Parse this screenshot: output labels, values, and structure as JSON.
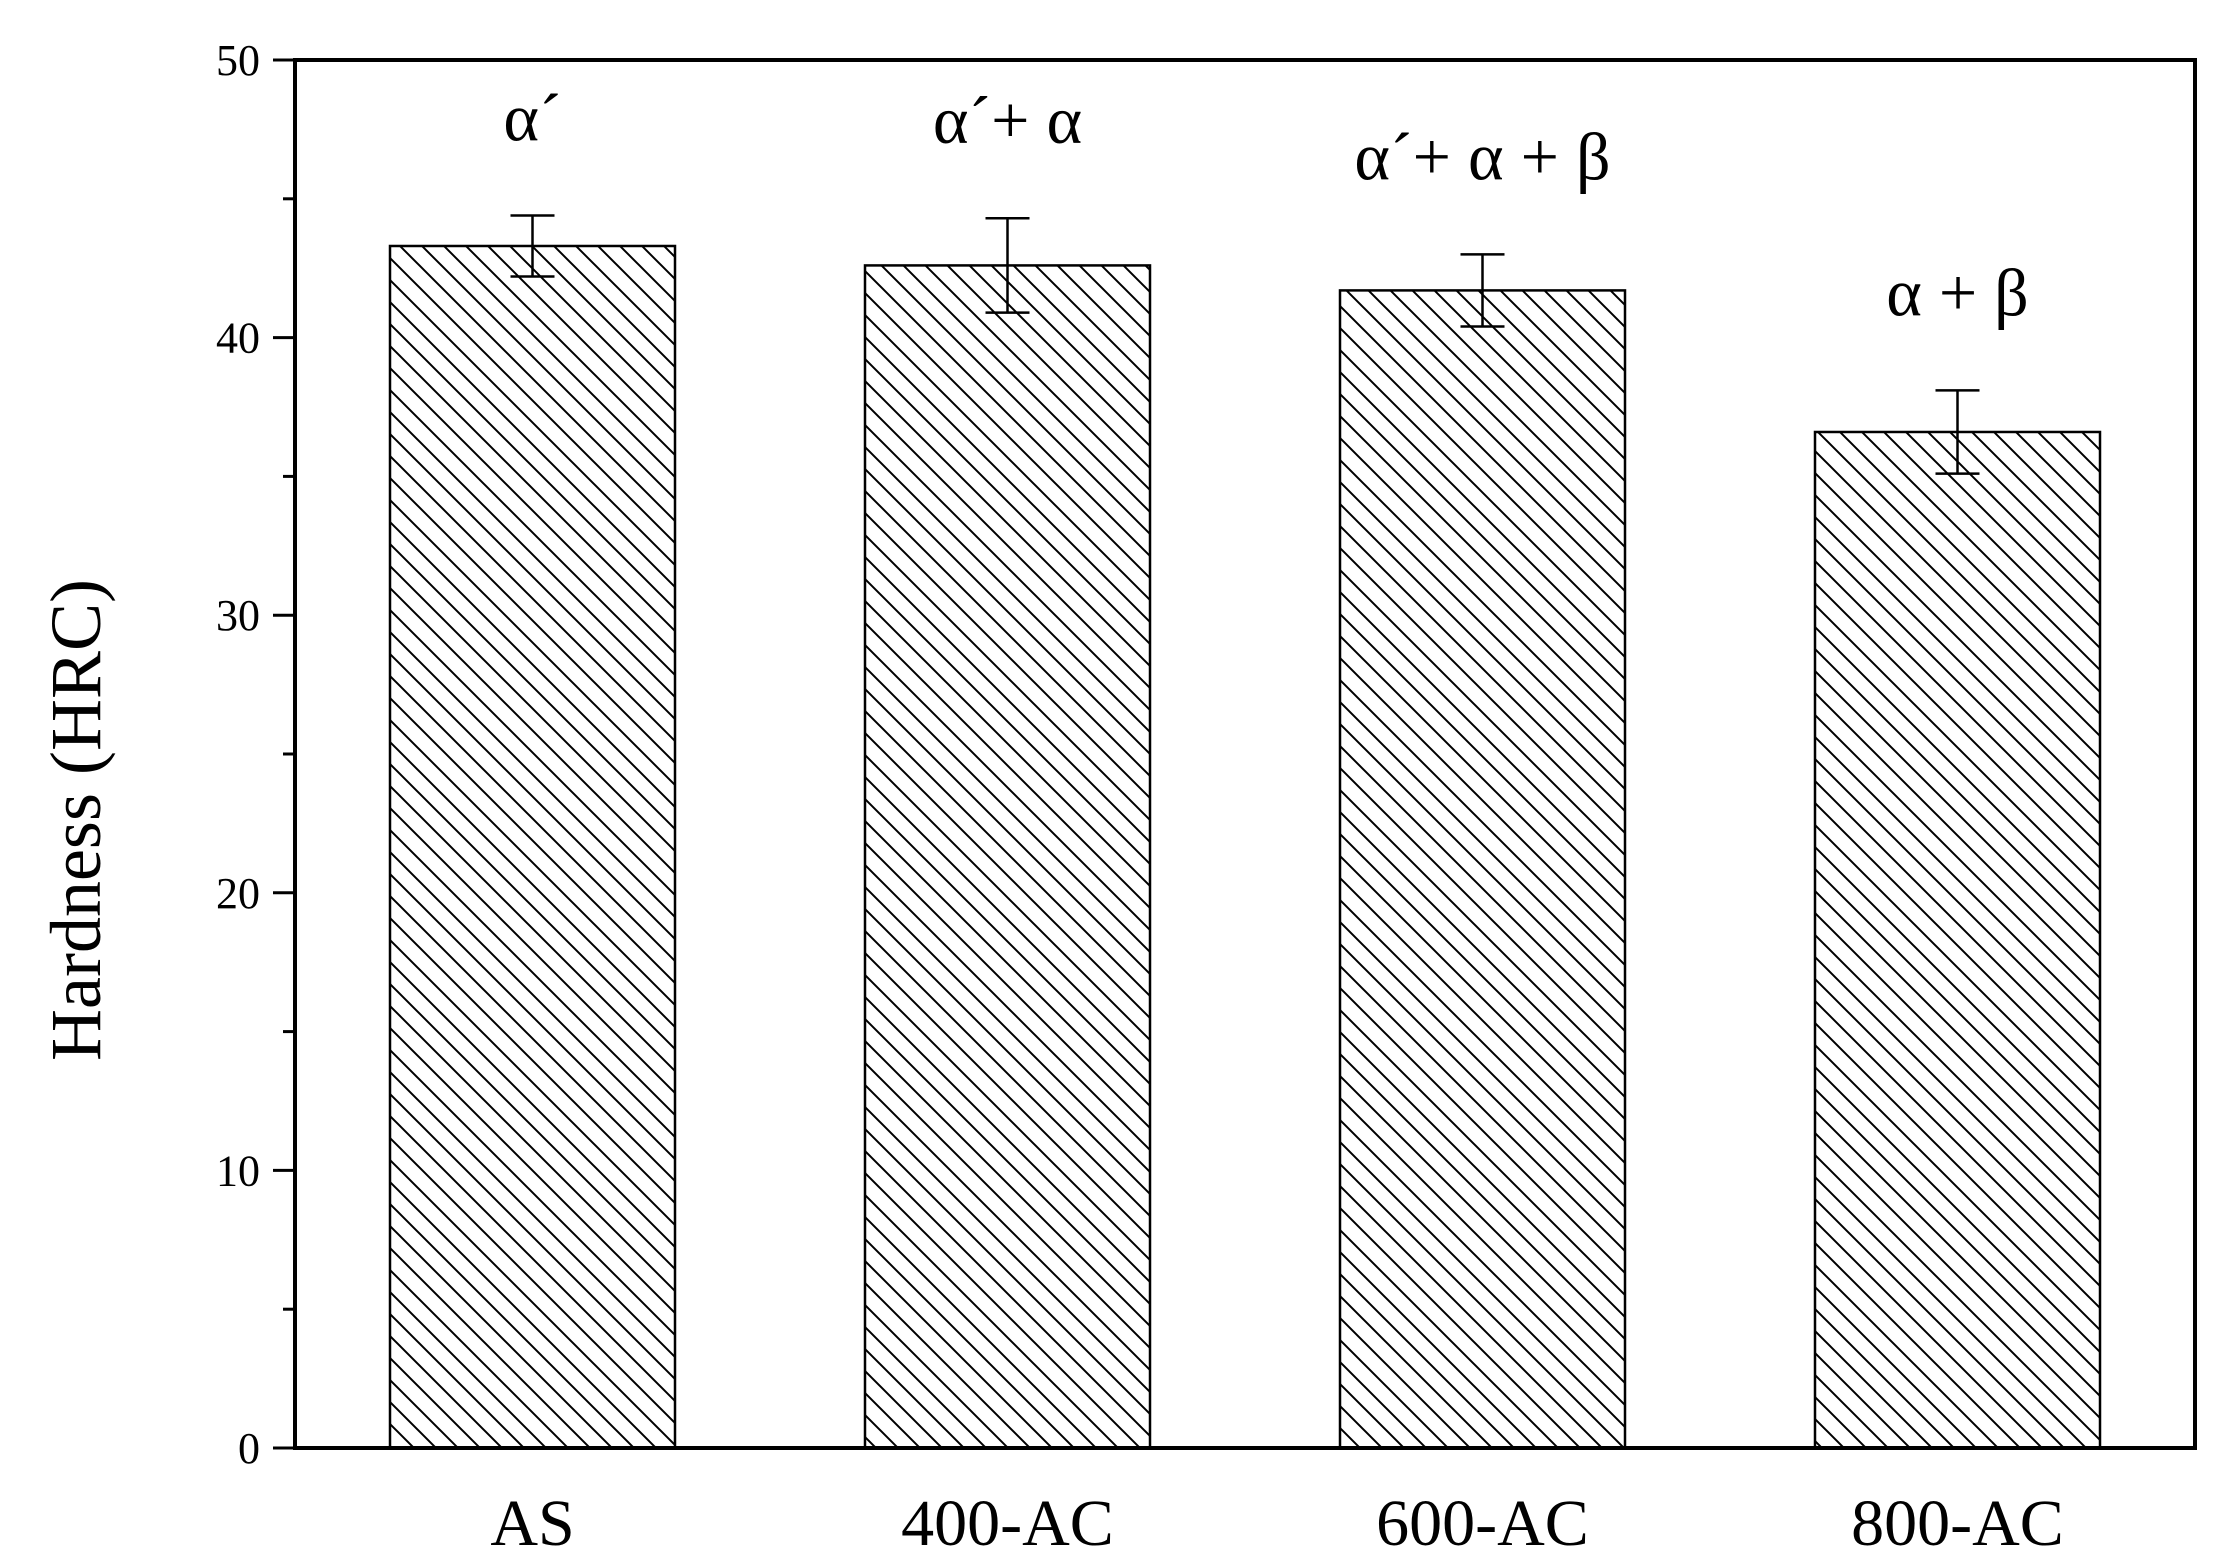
{
  "chart_data": {
    "type": "bar",
    "title": "",
    "xlabel": "",
    "ylabel": "Hardness (HRC)",
    "ylim": [
      0,
      50
    ],
    "yticks": [
      "0",
      "10",
      "20",
      "30",
      "40",
      "50"
    ],
    "categories": [
      "AS",
      "400-AC",
      "600-AC",
      "800-AC"
    ],
    "values": [
      43.3,
      42.6,
      41.7,
      36.6
    ],
    "errors": [
      1.1,
      1.7,
      1.3,
      1.5
    ],
    "annotations": [
      "α´",
      "α´+ α",
      "α´+ α + β",
      "α + β"
    ],
    "grid": false,
    "legend": "none",
    "bar_fill": "hatched",
    "colors": {
      "bar_stroke": "#000000",
      "hatch": "#000000",
      "background": "#ffffff"
    }
  }
}
